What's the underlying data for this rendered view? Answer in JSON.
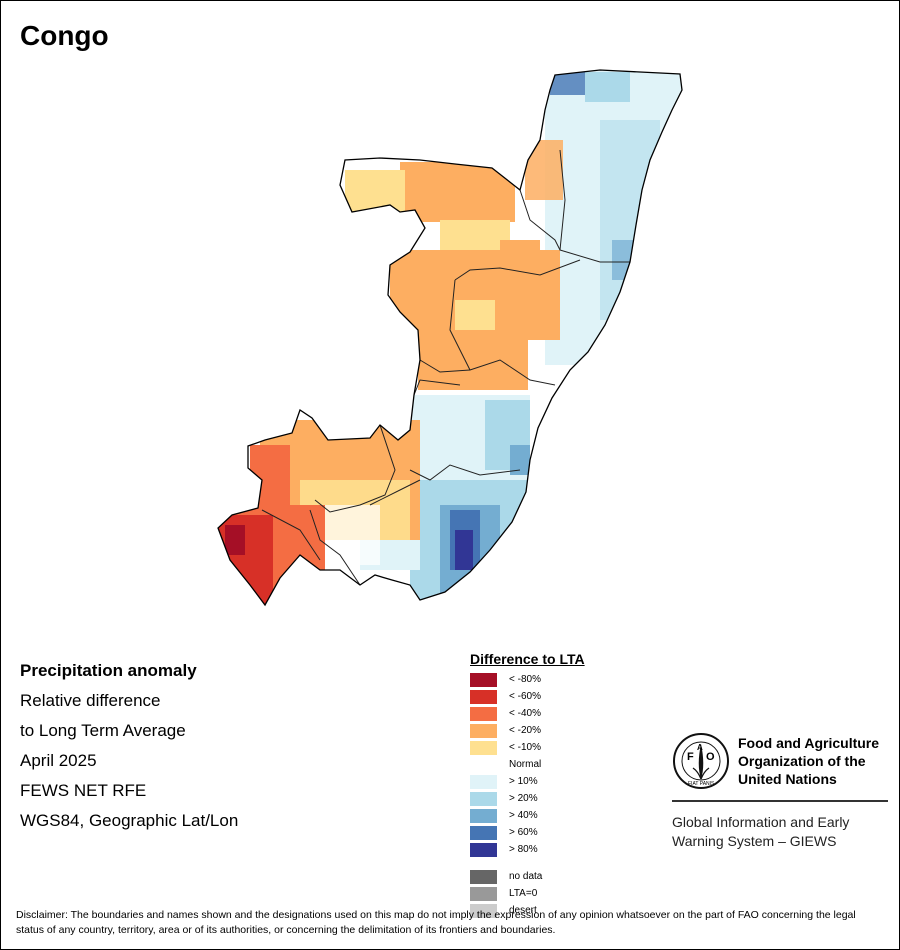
{
  "map": {
    "title": "Congo",
    "info_lines": [
      "Precipitation anomaly",
      "Relative difference",
      "to Long Term Average",
      "April 2025",
      "FEWS NET RFE",
      "WGS84, Geographic Lat/Lon"
    ],
    "legend": {
      "title": "Difference to LTA",
      "classes": [
        {
          "label": "< -80%",
          "color": "#a50f26"
        },
        {
          "label": "< -60%",
          "color": "#d73027"
        },
        {
          "label": "< -40%",
          "color": "#f46d43"
        },
        {
          "label": "< -20%",
          "color": "#fdae61"
        },
        {
          "label": "< -10%",
          "color": "#fee090"
        },
        {
          "label": "Normal",
          "color": "#ffffff"
        },
        {
          "label": "> 10%",
          "color": "#e0f3f8"
        },
        {
          "label": "> 20%",
          "color": "#abd9e9"
        },
        {
          "label": "> 40%",
          "color": "#74add1"
        },
        {
          "label": "> 60%",
          "color": "#4575b4"
        },
        {
          "label": "> 80%",
          "color": "#313695"
        }
      ],
      "special": [
        {
          "label": "no data",
          "color": "#666666"
        },
        {
          "label": "LTA=0",
          "color": "#999999"
        },
        {
          "label": "desert",
          "color": "#cccccc"
        }
      ]
    }
  },
  "org": {
    "emblem_icon": "fao-emblem-icon",
    "emblem_letters": "FAO",
    "emblem_motto": "FIAT PANIS",
    "name": "Food and Agriculture Organization of the United Nations",
    "system": "Global Information and Early Warning System – GIEWS"
  },
  "disclaimer": "Disclaimer: The boundaries and names shown and the designations used on this map do not imply the expression of any opinion whatsoever on the part of FAO concerning the legal status of any country, territory, area or of its authorities, or concerning the delimitation of its frontiers and boundaries."
}
